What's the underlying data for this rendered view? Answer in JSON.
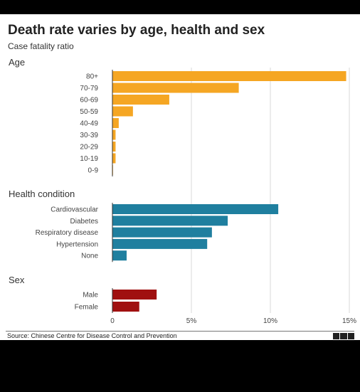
{
  "title": "Death rate varies by age, health and sex",
  "subtitle": "Case fatality ratio",
  "source": "Source: Chinese Centre for Disease Control and Prevention",
  "logo": "BBC",
  "chart_data": {
    "type": "bar",
    "orientation": "horizontal",
    "xlim": [
      0,
      15
    ],
    "xticks": [
      0,
      5,
      10,
      15
    ],
    "xtick_labels": [
      "0",
      "5%",
      "10%",
      "15%"
    ],
    "grid": true,
    "groups": [
      {
        "name": "Age",
        "color": "#f5a623",
        "categories": [
          "80+",
          "70-79",
          "60-69",
          "50-59",
          "40-49",
          "30-39",
          "20-29",
          "10-19",
          "0-9"
        ],
        "values": [
          14.8,
          8.0,
          3.6,
          1.3,
          0.4,
          0.2,
          0.2,
          0.2,
          0.0
        ]
      },
      {
        "name": "Health condition",
        "color": "#1f7f9f",
        "categories": [
          "Cardiovascular",
          "Diabetes",
          "Respiratory disease",
          "Hypertension",
          "None"
        ],
        "values": [
          10.5,
          7.3,
          6.3,
          6.0,
          0.9
        ]
      },
      {
        "name": "Sex",
        "color": "#a01010",
        "categories": [
          "Male",
          "Female"
        ],
        "values": [
          2.8,
          1.7
        ]
      }
    ]
  }
}
